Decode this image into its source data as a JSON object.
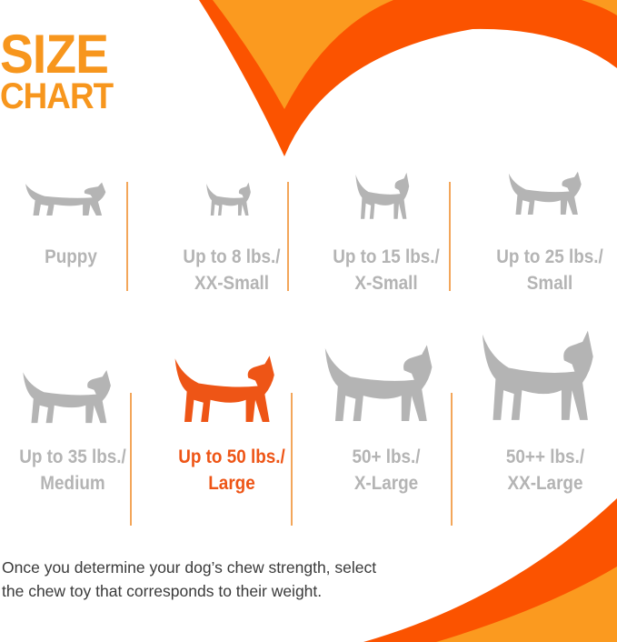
{
  "title": {
    "line1": "SIZE",
    "line2": "CHART"
  },
  "colors": {
    "light_orange": "#fb9a1f",
    "dark_orange": "#fb5300",
    "gray": "#b4b4b4",
    "highlight": "#ee5516"
  },
  "sizes": [
    {
      "icon": "puppy-icon",
      "line1": "Puppy",
      "line2": "",
      "highlighted": false
    },
    {
      "icon": "chihuahua-icon",
      "line1": "Up to 8 lbs./",
      "line2": "XX-Small",
      "highlighted": false
    },
    {
      "icon": "pinscher-icon",
      "line1": "Up to 15 lbs./",
      "line2": "X-Small",
      "highlighted": false
    },
    {
      "icon": "terrier-icon",
      "line1": "Up to 25 lbs./",
      "line2": "Small",
      "highlighted": false
    },
    {
      "icon": "beagle-icon",
      "line1": "Up to 35 lbs./",
      "line2": "Medium",
      "highlighted": false
    },
    {
      "icon": "labrador-icon",
      "line1": "Up to 50 lbs./",
      "line2": "Large",
      "highlighted": true
    },
    {
      "icon": "shepherd-icon",
      "line1": "50+ lbs./",
      "line2": "X-Large",
      "highlighted": false
    },
    {
      "icon": "great-dane-icon",
      "line1": "50++ lbs./",
      "line2": "XX-Large",
      "highlighted": false
    }
  ],
  "note": {
    "line1": "Once you determine your dog’s chew strength, select",
    "line2": "the chew toy that corresponds to their weight."
  }
}
